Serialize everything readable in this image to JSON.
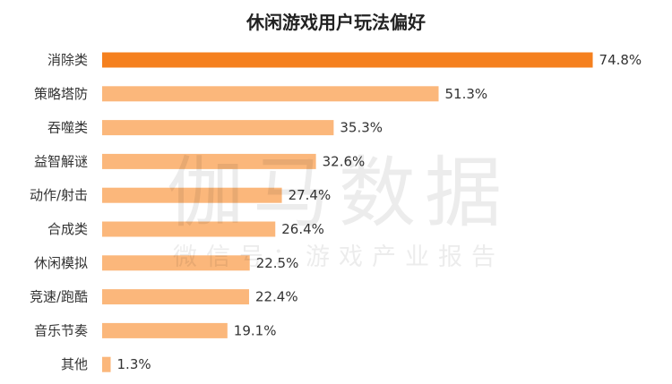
{
  "chart_data": {
    "type": "bar",
    "orientation": "horizontal",
    "title": "休闲游戏用户玩法偏好",
    "categories": [
      "消除类",
      "策略塔防",
      "吞噬类",
      "益智解谜",
      "动作/射击",
      "合成类",
      "休闲模拟",
      "竞速/跑酷",
      "音乐节奏",
      "其他"
    ],
    "values": [
      74.8,
      51.3,
      35.3,
      32.6,
      27.4,
      26.4,
      22.5,
      22.4,
      19.1,
      1.3
    ],
    "value_labels": [
      "74.8%",
      "51.3%",
      "35.3%",
      "32.6%",
      "27.4%",
      "26.4%",
      "22.5%",
      "22.4%",
      "19.1%",
      "1.3%"
    ],
    "xlim": [
      0,
      100
    ],
    "grid": false,
    "legend": "none",
    "colors": {
      "highlight": "#F5801E",
      "bar": "#FBB77B",
      "text": "#333333",
      "title": "#222222"
    }
  },
  "watermark": {
    "main": "伽马数据",
    "sub": "微信号：游戏产业报告"
  }
}
